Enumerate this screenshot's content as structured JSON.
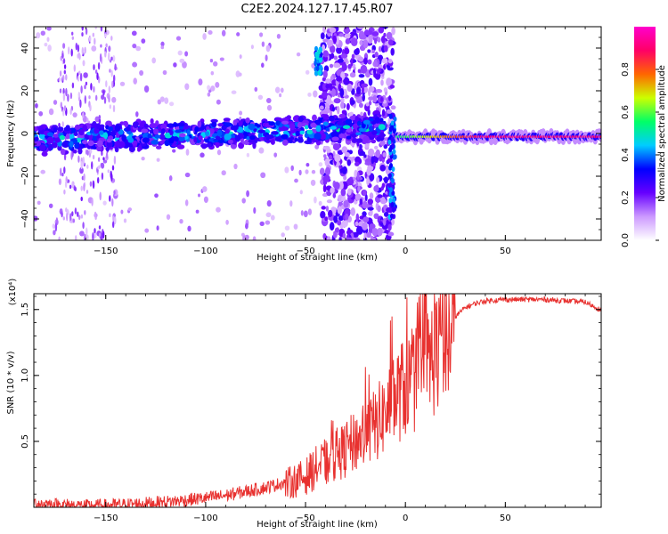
{
  "title": "C2E2.2024.127.17.45.R07",
  "chart_data": [
    {
      "type": "heatmap",
      "xlabel": "Height of straight line (km)",
      "ylabel": "Frequency (Hz)",
      "xlim": [
        -186,
        98
      ],
      "ylim": [
        -50,
        50
      ],
      "xticks": [
        -150,
        -100,
        -50,
        0,
        50
      ],
      "yticks": [
        -40,
        -20,
        0,
        20,
        40
      ],
      "colorbar": {
        "label": "Normalized spectral amplitude",
        "ticks": [
          "0.0",
          "0.2",
          "0.4",
          "0.6",
          "0.8"
        ],
        "tick_values": [
          0.0,
          0.2,
          0.4,
          0.6,
          0.8
        ],
        "range": [
          0,
          1
        ],
        "colors": [
          "#ffffff",
          "#cc99ff",
          "#6600ff",
          "#0000ff",
          "#00ccff",
          "#00ff66",
          "#ccff00",
          "#ff6600",
          "#ff0066",
          "#ff00cc"
        ]
      },
      "regions": [
        {
          "x": [
            -186,
            -10
          ],
          "freq_center": 0,
          "amplitude": 0.25,
          "note": "band drifting from -4 Hz to +2 Hz"
        },
        {
          "x": [
            -42,
            -6
          ],
          "freq_range": [
            -50,
            50
          ],
          "amplitude": 0.15
        },
        {
          "x": [
            -6,
            98
          ],
          "freq_center": -2,
          "amplitude": 0.85
        }
      ]
    },
    {
      "type": "line",
      "xlabel": "Height of straight line (km)",
      "ylabel": "SNR (10 * v/v)",
      "y_multiplier": "(x10⁴)",
      "xlim": [
        -186,
        98
      ],
      "ylim": [
        0,
        1.62
      ],
      "xticks": [
        -150,
        -100,
        -50,
        0,
        50
      ],
      "yticks": [
        0.5,
        1.0,
        1.5
      ],
      "ytick_labels": [
        "0.5",
        "1.0",
        "1.5"
      ],
      "series": [
        {
          "color": "#e8312f",
          "x": [
            -186,
            -160,
            -140,
            -120,
            -100,
            -90,
            -80,
            -70,
            -60,
            -50,
            -45,
            -40,
            -35,
            -30,
            -25,
            -20,
            -15,
            -10,
            -5,
            0,
            5,
            10,
            15,
            20,
            25,
            30,
            35,
            40,
            50,
            60,
            70,
            80,
            90,
            98
          ],
          "y": [
            0.04,
            0.02,
            0.03,
            0.05,
            0.08,
            0.1,
            0.13,
            0.16,
            0.2,
            0.26,
            0.33,
            0.38,
            0.42,
            0.48,
            0.55,
            0.6,
            0.68,
            0.78,
            0.9,
            1.0,
            1.05,
            1.15,
            1.28,
            1.35,
            1.45,
            1.52,
            1.55,
            1.57,
            1.58,
            1.58,
            1.58,
            1.57,
            1.56,
            1.5
          ]
        }
      ]
    }
  ]
}
